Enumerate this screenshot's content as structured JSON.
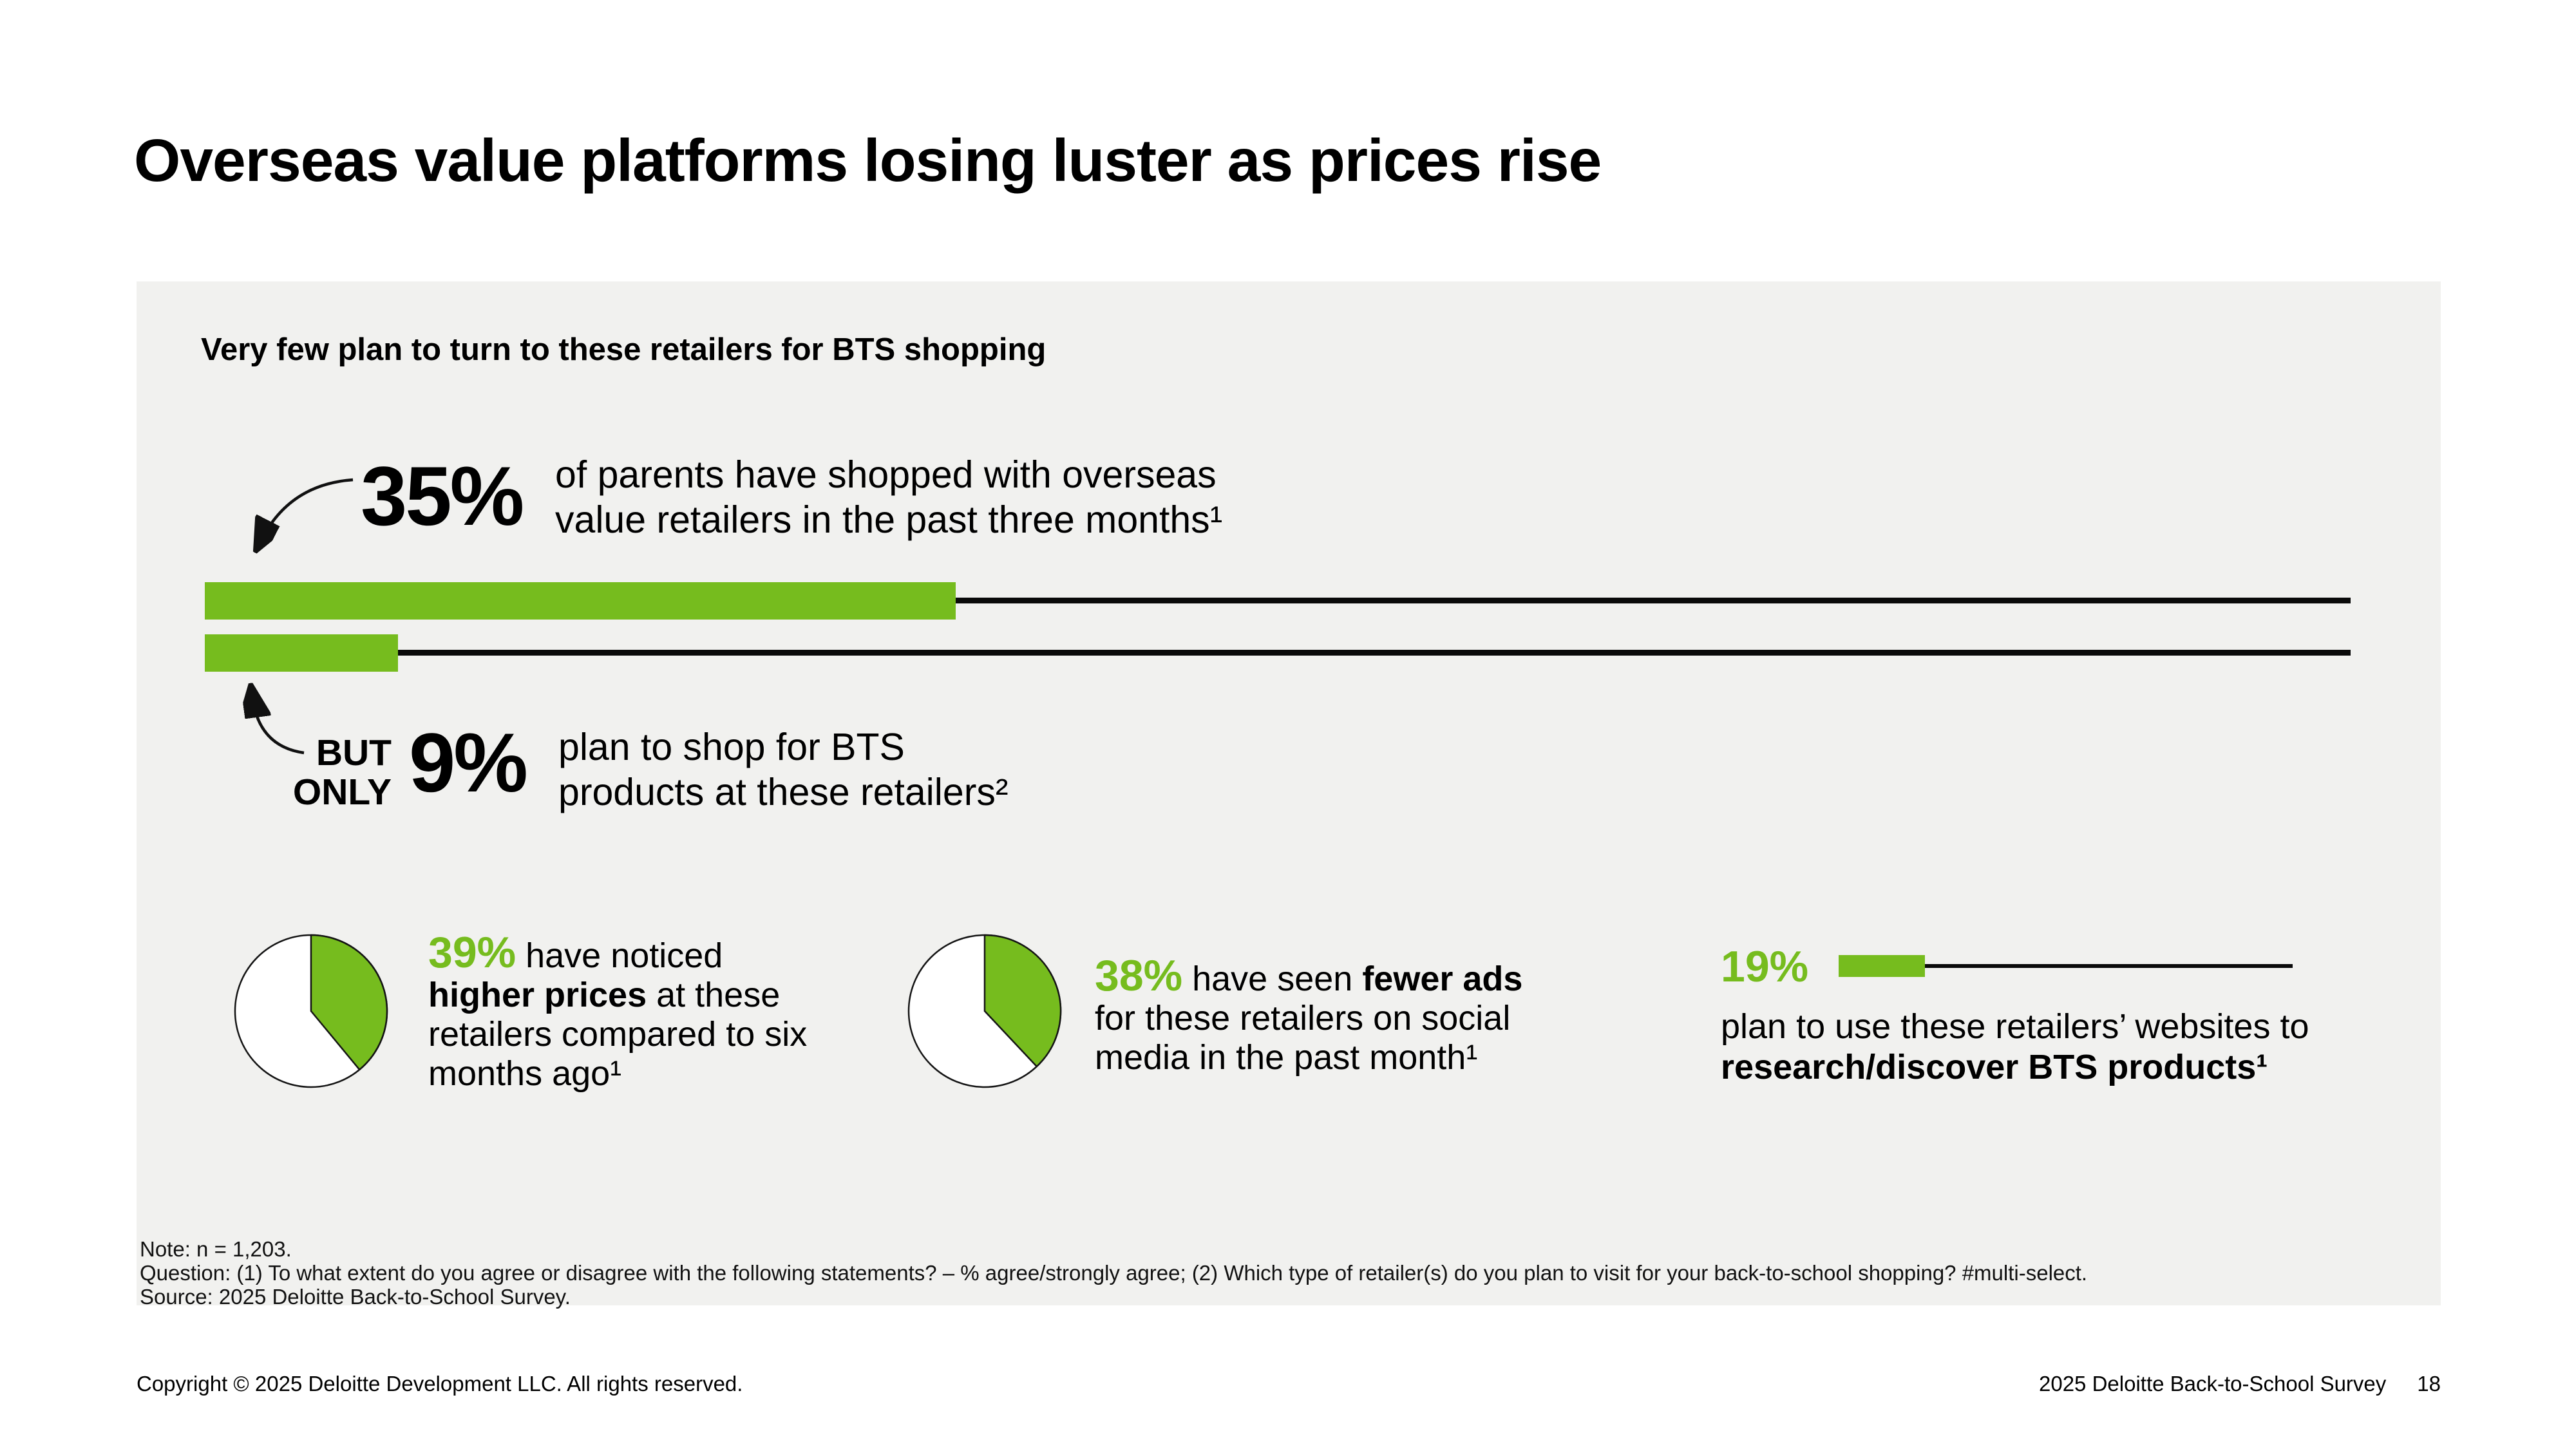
{
  "title": "Overseas value platforms losing luster as prices rise",
  "panel": {
    "subtitle": "Very few plan to turn to these retailers for BTS shopping"
  },
  "hero_top": {
    "pct": "35%",
    "line1": "of parents have shopped with overseas",
    "line2": "value retailers in the past three months¹"
  },
  "hero_bottom": {
    "label_line1": "BUT",
    "label_line2": "ONLY",
    "pct": "9%",
    "line1": "plan to shop for BTS",
    "line2": "products at these retailers²"
  },
  "stats": [
    {
      "pct": "39%",
      "l1": " have noticed",
      "l2b": "higher prices",
      "l2": " at these",
      "l3": "retailers compared to six",
      "l4": "months ago¹"
    },
    {
      "pct": "38%",
      "l1": " have seen ",
      "l1b": "fewer ads",
      "l2": "for these retailers on social",
      "l3": "media in the past month¹"
    },
    {
      "pct": "19%",
      "l1": "plan to use these retailers’ websites to",
      "l2b": "research/discover BTS products¹"
    }
  ],
  "notes": {
    "line1": "Note: n = 1,203.",
    "line2": "Question: (1) To what extent do you agree or disagree with the following statements? – % agree/strongly agree; (2) Which type of retailer(s) do you plan to visit for your back-to-school shopping? #multi-select.",
    "line3": "Source: 2025 Deloitte Back-to-School Survey."
  },
  "footer": {
    "left": "Copyright © 2025 Deloitte Development LLC. All rights reserved.",
    "right": "2025 Deloitte Back-to-School Survey",
    "page": "18"
  },
  "colors": {
    "green": "#76BC1E",
    "panel_bg": "#F1F1EF",
    "line_black": "#0A0A0A",
    "text": "#000000"
  },
  "chart_data": [
    {
      "type": "bar",
      "orientation": "horizontal",
      "title": "Very few plan to turn to these retailers for BTS shopping",
      "unit": "%",
      "xlim": [
        0,
        100
      ],
      "categories": [
        "Of parents have shopped with overseas value retailers in the past three months",
        "Plan to shop for BTS products at these retailers"
      ],
      "values": [
        35,
        9
      ],
      "bar_color": "#76BC1E",
      "remainder_style": "thin black line to 100%"
    },
    {
      "type": "pie",
      "labels": [
        "Have noticed higher prices at these retailers compared to six months ago",
        "Rest"
      ],
      "values": [
        39,
        61
      ],
      "colors": [
        "#76BC1E",
        "#FFFFFF"
      ],
      "start_angle": "12 o'clock, clockwise"
    },
    {
      "type": "pie",
      "labels": [
        "Have seen fewer ads for these retailers on social media in the past month",
        "Rest"
      ],
      "values": [
        38,
        62
      ],
      "colors": [
        "#76BC1E",
        "#FFFFFF"
      ],
      "start_angle": "12 o'clock, clockwise"
    },
    {
      "type": "bar",
      "orientation": "horizontal",
      "unit": "%",
      "xlim": [
        0,
        100
      ],
      "categories": [
        "Plan to use these retailers’ websites to research/discover BTS products"
      ],
      "values": [
        19
      ],
      "bar_color": "#76BC1E",
      "remainder_style": "thin black line to 100%"
    }
  ]
}
